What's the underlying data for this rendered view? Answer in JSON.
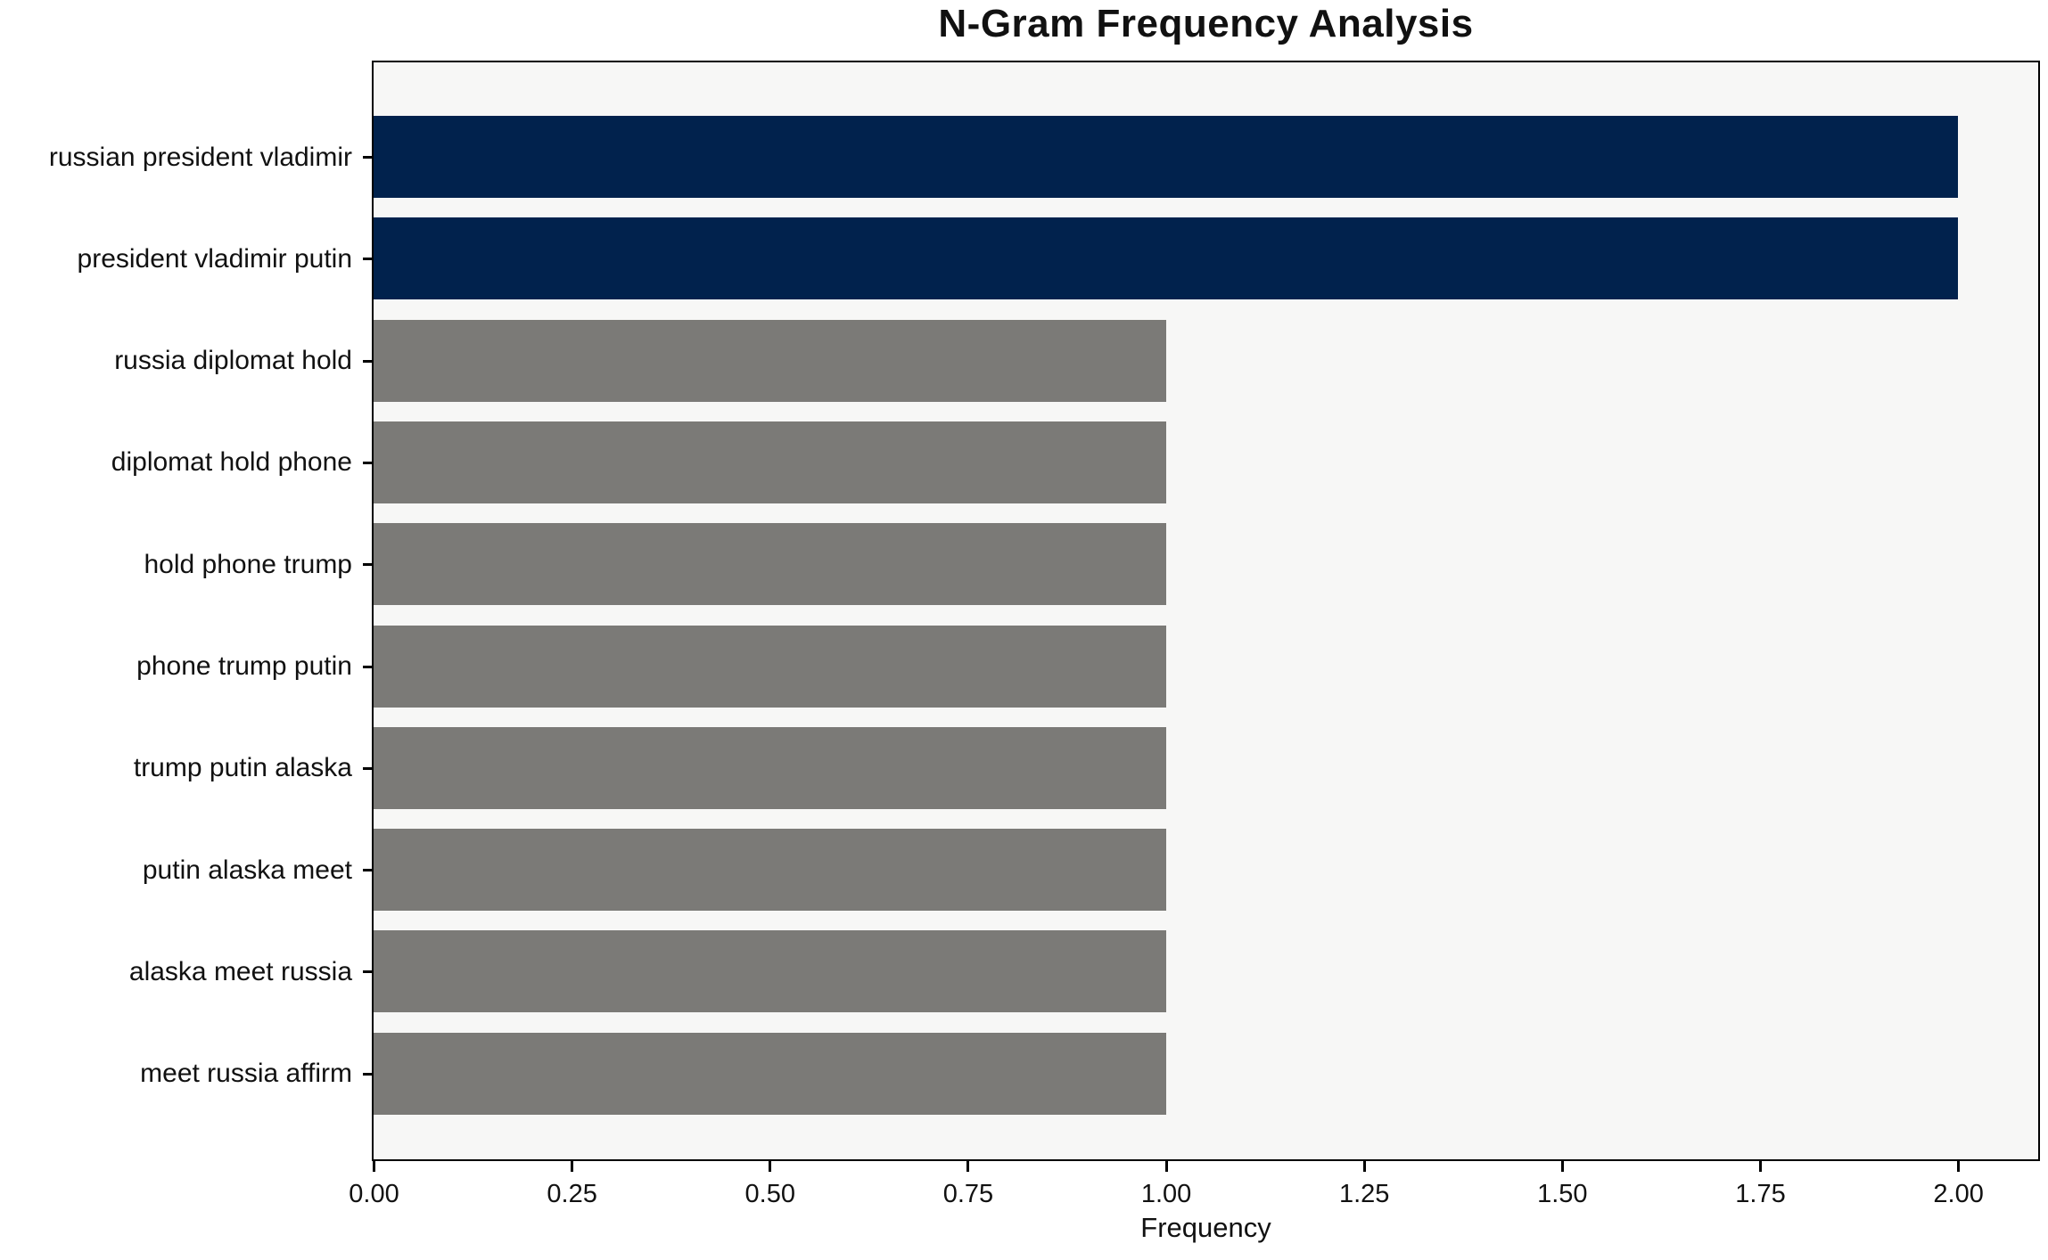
{
  "title": "N-Gram Frequency Analysis",
  "chart_data": {
    "type": "bar",
    "orientation": "horizontal",
    "title": "N-Gram Frequency Analysis",
    "categories": [
      "russian president vladimir",
      "president vladimir putin",
      "russia diplomat hold",
      "diplomat hold phone",
      "hold phone trump",
      "phone trump putin",
      "trump putin alaska",
      "putin alaska meet",
      "alaska meet russia",
      "meet russia affirm"
    ],
    "values": [
      2,
      2,
      1,
      1,
      1,
      1,
      1,
      1,
      1,
      1
    ],
    "bar_colors": [
      "#01224d",
      "#01224d",
      "#7b7a77",
      "#7b7a77",
      "#7b7a77",
      "#7b7a77",
      "#7b7a77",
      "#7b7a77",
      "#7b7a77",
      "#7b7a77"
    ],
    "xlabel": "Frequency",
    "ylabel": "",
    "xlim": [
      0,
      2.1
    ],
    "xtick_values": [
      0,
      0.25,
      0.5,
      0.75,
      1,
      1.25,
      1.5,
      1.75,
      2
    ],
    "xtick_labels": [
      "0.00",
      "0.25",
      "0.50",
      "0.75",
      "1.00",
      "1.25",
      "1.50",
      "1.75",
      "2.00"
    ],
    "grid": false,
    "legend": false,
    "colors": {
      "highlight": "#01224d",
      "base": "#7b7a77",
      "plot_background": "#f7f7f6",
      "figure_background": "#ffffff",
      "spine": "#000000",
      "text": "#111111"
    }
  }
}
